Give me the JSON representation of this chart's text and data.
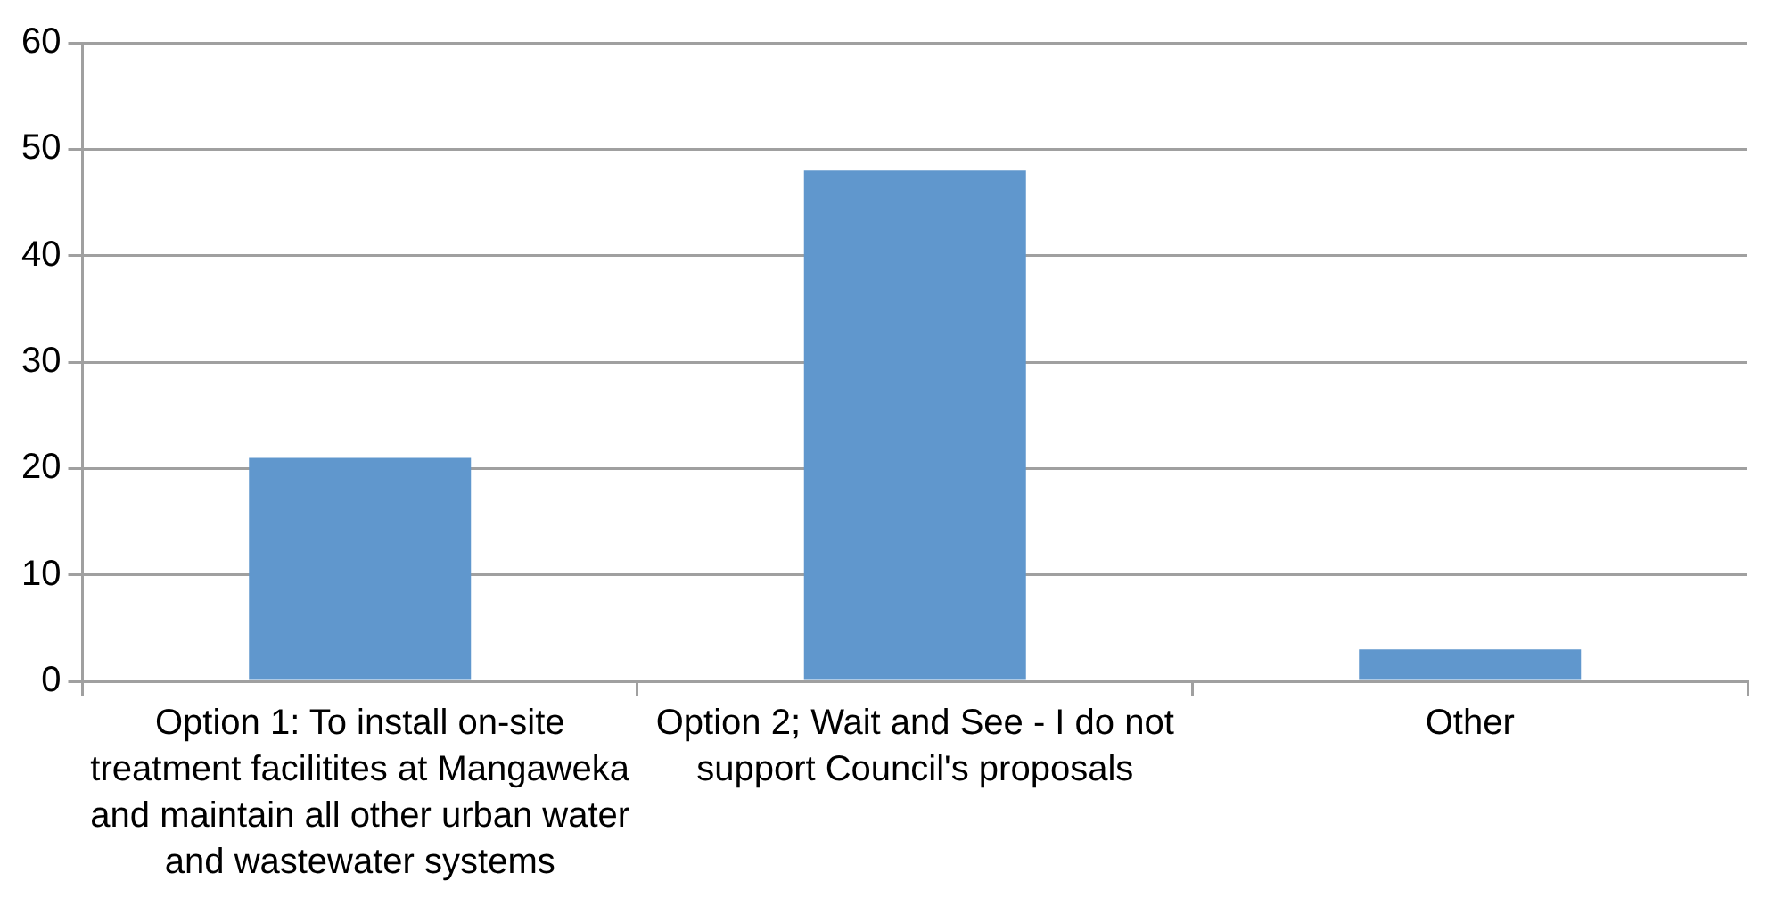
{
  "chart_data": {
    "type": "bar",
    "categories": [
      "Option 1: To install on-site treatment facilitites at Mangaweka and maintain all other urban water and wastewater systems",
      "Option 2; Wait and See - I do not support Council's proposals",
      "Other"
    ],
    "values": [
      21,
      48,
      3
    ],
    "color": "#6097cd",
    "ylim": [
      0,
      60
    ],
    "yticks": [
      0,
      10,
      20,
      30,
      40,
      50,
      60
    ],
    "grid": "y",
    "legend": false
  }
}
